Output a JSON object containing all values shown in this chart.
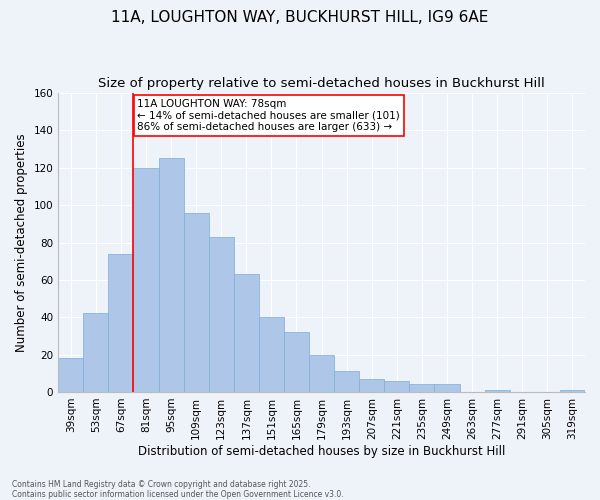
{
  "title": "11A, LOUGHTON WAY, BUCKHURST HILL, IG9 6AE",
  "subtitle": "Size of property relative to semi-detached houses in Buckhurst Hill",
  "xlabel": "Distribution of semi-detached houses by size in Buckhurst Hill",
  "ylabel": "Number of semi-detached properties",
  "footnote1": "Contains HM Land Registry data © Crown copyright and database right 2025.",
  "footnote2": "Contains public sector information licensed under the Open Government Licence v3.0.",
  "bar_labels": [
    "39sqm",
    "53sqm",
    "67sqm",
    "81sqm",
    "95sqm",
    "109sqm",
    "123sqm",
    "137sqm",
    "151sqm",
    "165sqm",
    "179sqm",
    "193sqm",
    "207sqm",
    "221sqm",
    "235sqm",
    "249sqm",
    "263sqm",
    "277sqm",
    "291sqm",
    "305sqm",
    "319sqm"
  ],
  "bar_values": [
    18,
    42,
    74,
    120,
    125,
    96,
    83,
    63,
    40,
    32,
    20,
    11,
    7,
    6,
    4,
    4,
    0,
    1,
    0,
    0,
    1
  ],
  "bar_color": "#aec6e8",
  "bar_edgecolor": "#7aafd4",
  "bar_width": 1.0,
  "vline_x": 2.5,
  "vline_color": "red",
  "vline_label": "11A LOUGHTON WAY: 78sqm",
  "annotation_smaller": "← 14% of semi-detached houses are smaller (101)",
  "annotation_larger": "86% of semi-detached houses are larger (633) →",
  "annotation_box_facecolor": "white",
  "annotation_box_edgecolor": "red",
  "ylim": [
    0,
    160
  ],
  "yticks": [
    0,
    20,
    40,
    60,
    80,
    100,
    120,
    140,
    160
  ],
  "bg_color": "#eef2f9",
  "grid_color": "white",
  "title_fontsize": 11,
  "subtitle_fontsize": 9.5,
  "axis_label_fontsize": 8.5,
  "tick_fontsize": 7.5,
  "annotation_fontsize": 7.5,
  "footnote_fontsize": 5.5
}
